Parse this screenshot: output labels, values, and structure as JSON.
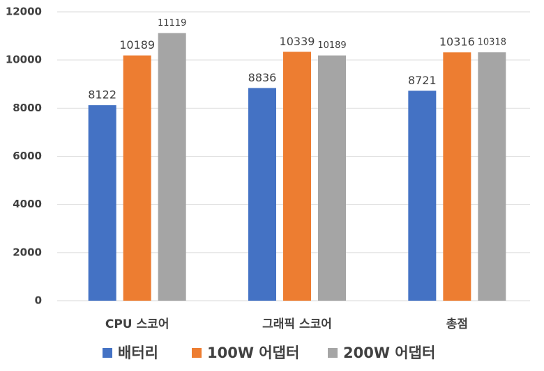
{
  "chart_data": {
    "type": "bar",
    "categories": [
      "CPU 스코어",
      "그래픽 스코어",
      "총점"
    ],
    "series": [
      {
        "name": "배터리",
        "color": "#4472c4",
        "values": [
          8122,
          8836,
          8721
        ]
      },
      {
        "name": "100W 어댑터",
        "color": "#ed7d31",
        "values": [
          10189,
          10339,
          10316
        ]
      },
      {
        "name": "200W 어댑터",
        "color": "#a5a5a5",
        "values": [
          11119,
          10189,
          10318
        ]
      }
    ],
    "ylim": [
      0,
      12000
    ],
    "yticks": [
      0,
      2000,
      4000,
      6000,
      8000,
      10000,
      12000
    ],
    "grid": true
  }
}
